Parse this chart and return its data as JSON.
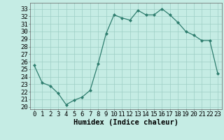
{
  "x": [
    0,
    1,
    2,
    3,
    4,
    5,
    6,
    7,
    8,
    9,
    10,
    11,
    12,
    13,
    14,
    15,
    16,
    17,
    18,
    19,
    20,
    21,
    22,
    23
  ],
  "y": [
    25.5,
    23.2,
    22.8,
    21.8,
    20.3,
    20.9,
    21.3,
    22.2,
    25.7,
    29.7,
    32.2,
    31.8,
    31.5,
    32.8,
    32.2,
    32.2,
    33.0,
    32.2,
    31.2,
    30.0,
    29.5,
    28.8,
    28.8,
    24.4
  ],
  "line_color": "#2e7d6e",
  "marker": "D",
  "marker_size": 2.0,
  "bg_color": "#c5ece4",
  "grid_color": "#9ecfc5",
  "xlabel": "Humidex (Indice chaleur)",
  "xlabel_fontsize": 7.5,
  "ylabel_ticks": [
    20,
    21,
    22,
    23,
    24,
    25,
    26,
    27,
    28,
    29,
    30,
    31,
    32,
    33
  ],
  "ylim": [
    19.7,
    33.8
  ],
  "xlim": [
    -0.5,
    23.5
  ],
  "xtick_labels": [
    "0",
    "1",
    "2",
    "3",
    "4",
    "5",
    "6",
    "7",
    "8",
    "9",
    "10",
    "11",
    "12",
    "13",
    "14",
    "15",
    "16",
    "17",
    "18",
    "19",
    "20",
    "21",
    "22",
    "23"
  ],
  "tick_fontsize": 6.5
}
